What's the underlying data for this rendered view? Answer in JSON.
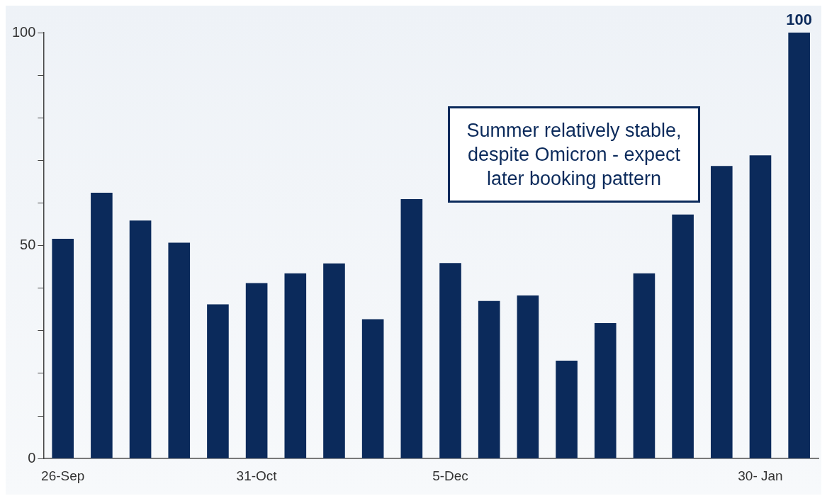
{
  "chart_data": {
    "type": "bar",
    "categories": [
      "26-Sep",
      null,
      null,
      null,
      null,
      "31-Oct",
      null,
      null,
      null,
      null,
      "5-Dec",
      null,
      null,
      null,
      null,
      null,
      null,
      null,
      "30- Jan",
      null
    ],
    "values": [
      51.6,
      62.4,
      55.9,
      50.7,
      36.2,
      41.2,
      43.5,
      45.8,
      32.7,
      60.9,
      45.9,
      37.0,
      38.3,
      23.0,
      31.8,
      43.5,
      57.3,
      68.7,
      71.2,
      100
    ],
    "value_labels": [
      null,
      null,
      null,
      null,
      null,
      null,
      null,
      null,
      null,
      null,
      null,
      null,
      null,
      null,
      null,
      null,
      null,
      null,
      null,
      "100"
    ],
    "color": "#0b2a5b",
    "ylim": [
      0,
      100
    ],
    "yticks": [
      0,
      {
        "value": 10,
        "label": null
      },
      {
        "value": 20,
        "label": null
      },
      {
        "value": 30,
        "label": null
      },
      {
        "value": 40,
        "label": null
      },
      50,
      {
        "value": 60,
        "label": null
      },
      {
        "value": 70,
        "label": null
      },
      {
        "value": 80,
        "label": null
      },
      {
        "value": 90,
        "label": null
      },
      100
    ],
    "grid": false,
    "legend": false,
    "annotations": [
      "Summer relatively stable, despite Omicron - expect later booking pattern"
    ]
  }
}
